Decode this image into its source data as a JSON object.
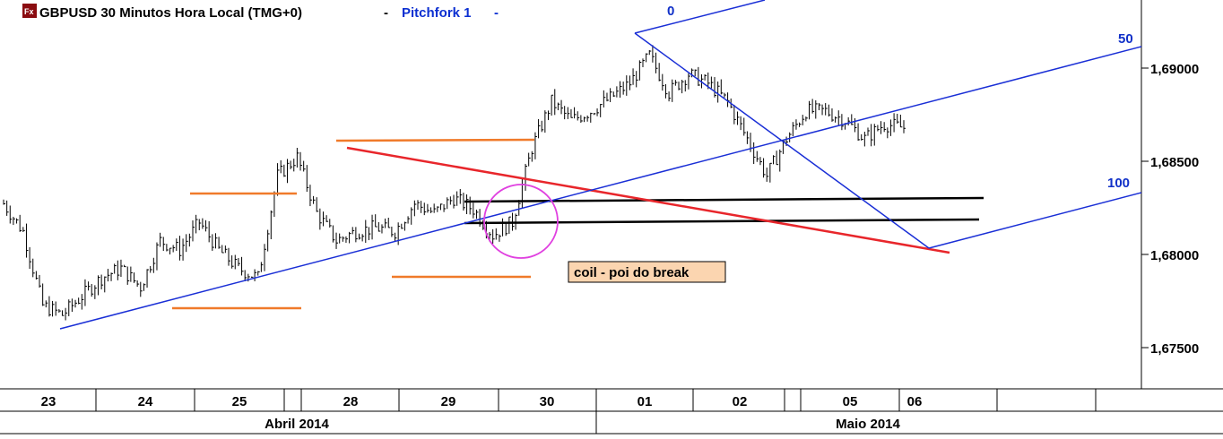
{
  "header": {
    "app_icon": "fx-icon",
    "title": "GBPUSD 30 Minutos Hora Local (TMG+0)",
    "separator": "-",
    "study_label": "Pitchfork 1",
    "study_menu_marker": "-"
  },
  "chart_data": {
    "type": "line",
    "title": "GBPUSD 30 Minutos Hora Local (TMG+0)",
    "series": [
      {
        "name": "GBPUSD",
        "points": [
          [
            "23",
            1.6825
          ],
          [
            "23",
            1.681
          ],
          [
            "23",
            1.677
          ],
          [
            "23",
            1.6765
          ],
          [
            "24",
            1.6775
          ],
          [
            "24",
            1.6785
          ],
          [
            "24",
            1.679
          ],
          [
            "24",
            1.678
          ],
          [
            "25",
            1.6805
          ],
          [
            "25",
            1.68
          ],
          [
            "25",
            1.6815
          ],
          [
            "25",
            1.68
          ],
          [
            "25",
            1.679
          ],
          [
            "28",
            1.6785
          ],
          [
            "28",
            1.684
          ],
          [
            "28",
            1.685
          ],
          [
            "28",
            1.682
          ],
          [
            "28",
            1.6805
          ],
          [
            "29",
            1.681
          ],
          [
            "29",
            1.6812
          ],
          [
            "29",
            1.681
          ],
          [
            "29",
            1.6825
          ],
          [
            "29",
            1.682
          ],
          [
            "29",
            1.6828
          ],
          [
            "30",
            1.6822
          ],
          [
            "30",
            1.6808
          ],
          [
            "30",
            1.6815
          ],
          [
            "30",
            1.6855
          ],
          [
            "30",
            1.688
          ],
          [
            "30",
            1.687
          ],
          [
            "30",
            1.6875
          ],
          [
            "30",
            1.6882
          ],
          [
            "01",
            1.689
          ],
          [
            "01",
            1.6905
          ],
          [
            "01",
            1.6885
          ],
          [
            "01",
            1.6895
          ],
          [
            "01",
            1.689
          ],
          [
            "02",
            1.688
          ],
          [
            "02",
            1.686
          ],
          [
            "02",
            1.684
          ],
          [
            "02",
            1.686
          ],
          [
            "02",
            1.6875
          ],
          [
            "05",
            1.6875
          ],
          [
            "05",
            1.687
          ],
          [
            "05",
            1.686
          ],
          [
            "05",
            1.6868
          ],
          [
            "06",
            1.6866
          ]
        ]
      }
    ],
    "xlabel": "",
    "ylabel": "",
    "y_ticks": [
      "1,69000",
      "1,68500",
      "1,68000",
      "1,67500"
    ],
    "x_day_labels": [
      "23",
      "24",
      "25",
      "28",
      "29",
      "30",
      "01",
      "02",
      "05",
      "06"
    ],
    "x_month_labels": [
      "Abril 2014",
      "Maio 2014"
    ],
    "ylim": [
      1.6725,
      1.6935
    ],
    "grid": false,
    "legend": "none",
    "pitchfork_labels": [
      "0",
      "50",
      "100"
    ],
    "annotation": "coil - poi do break",
    "colors": {
      "price": "#000000",
      "trendline": "#1a2fd6",
      "resistance": "#e8262b",
      "range_marks": "#f07a2a",
      "coil_circle": "#e040e0",
      "annotation_bg": "#fbd5b0",
      "axis_bg": "#ffffff"
    }
  }
}
